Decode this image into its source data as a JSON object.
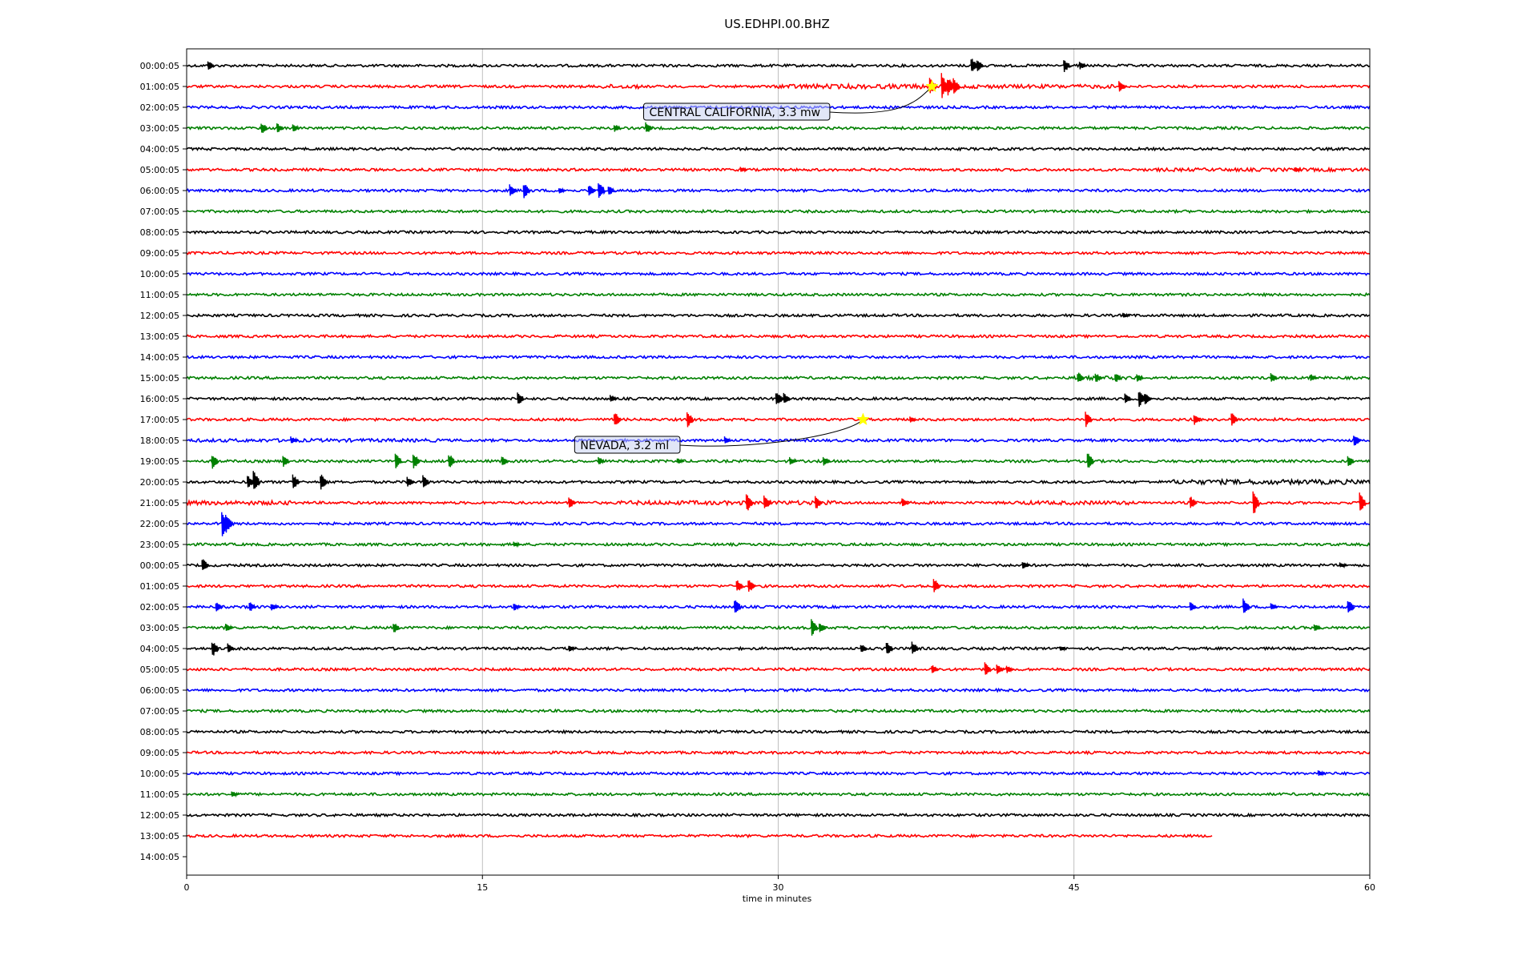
{
  "chart_data": {
    "type": "line",
    "title": "US.EDHPI.00.BHZ",
    "xlabel": "time in minutes",
    "ylabel": "",
    "xlim": [
      0,
      60
    ],
    "xticks": [
      0,
      15,
      30,
      45,
      60
    ],
    "grid": "vertical",
    "trace_colors": [
      "#000000",
      "#ff0000",
      "#0000ff",
      "#008000"
    ],
    "rows": [
      {
        "label": "00:00:05",
        "end_minute": 60,
        "events": [
          [
            1.2,
            0.5
          ],
          [
            39.9,
            0.8
          ],
          [
            40.2,
            0.6
          ],
          [
            44.6,
            0.7
          ],
          [
            45.4,
            0.4
          ]
        ],
        "noisy": []
      },
      {
        "label": "01:00:05",
        "end_minute": 60,
        "events": [
          [
            37.8,
            0.9
          ],
          [
            38.4,
            1.3
          ],
          [
            38.7,
            1.0
          ],
          [
            39.0,
            0.8
          ],
          [
            47.4,
            0.6
          ]
        ],
        "noisy": [
          [
            21,
            23,
            1.6
          ],
          [
            30,
            39,
            1.8
          ],
          [
            39,
            47,
            1.5
          ]
        ]
      },
      {
        "label": "02:00:05",
        "end_minute": 60,
        "events": [],
        "noisy": []
      },
      {
        "label": "03:00:05",
        "end_minute": 60,
        "events": [
          [
            3.9,
            0.6
          ],
          [
            4.7,
            0.5
          ],
          [
            5.5,
            0.4
          ],
          [
            21.8,
            0.4
          ],
          [
            23.4,
            0.6
          ]
        ],
        "noisy": []
      },
      {
        "label": "04:00:05",
        "end_minute": 60,
        "events": [],
        "noisy": []
      },
      {
        "label": "05:00:05",
        "end_minute": 60,
        "events": [
          [
            28.2,
            0.3
          ],
          [
            56.3,
            0.3
          ]
        ],
        "noisy": [
          [
            49,
            60,
            1.3
          ]
        ]
      },
      {
        "label": "06:00:05",
        "end_minute": 60,
        "events": [
          [
            16.5,
            0.6
          ],
          [
            17.2,
            0.8
          ],
          [
            19.0,
            0.3
          ],
          [
            20.5,
            0.6
          ],
          [
            21.0,
            1.0
          ],
          [
            21.5,
            0.5
          ]
        ],
        "noisy": []
      },
      {
        "label": "07:00:05",
        "end_minute": 60,
        "events": [],
        "noisy": []
      },
      {
        "label": "08:00:05",
        "end_minute": 60,
        "events": [],
        "noisy": []
      },
      {
        "label": "09:00:05",
        "end_minute": 60,
        "events": [],
        "noisy": []
      },
      {
        "label": "10:00:05",
        "end_minute": 60,
        "events": [],
        "noisy": []
      },
      {
        "label": "11:00:05",
        "end_minute": 60,
        "events": [],
        "noisy": []
      },
      {
        "label": "12:00:05",
        "end_minute": 60,
        "events": [
          [
            47.6,
            0.3
          ]
        ],
        "noisy": []
      },
      {
        "label": "13:00:05",
        "end_minute": 60,
        "events": [],
        "noisy": []
      },
      {
        "label": "14:00:05",
        "end_minute": 60,
        "events": [],
        "noisy": []
      },
      {
        "label": "15:00:05",
        "end_minute": 60,
        "events": [
          [
            45.3,
            0.6
          ],
          [
            46.2,
            0.5
          ],
          [
            47.2,
            0.5
          ],
          [
            48.3,
            0.4
          ],
          [
            55.1,
            0.5
          ],
          [
            57.1,
            0.4
          ]
        ],
        "noisy": [
          [
            45,
            48.5,
            1.4
          ]
        ]
      },
      {
        "label": "16:00:05",
        "end_minute": 60,
        "events": [
          [
            16.9,
            0.7
          ],
          [
            21.6,
            0.4
          ],
          [
            30.0,
            0.8
          ],
          [
            30.4,
            0.6
          ],
          [
            47.7,
            0.6
          ],
          [
            48.4,
            0.9
          ],
          [
            48.7,
            0.6
          ]
        ],
        "noisy": []
      },
      {
        "label": "17:00:05",
        "end_minute": 60,
        "events": [
          [
            21.8,
            0.8
          ],
          [
            25.5,
            0.8
          ],
          [
            36.8,
            0.3
          ],
          [
            45.7,
            0.8
          ],
          [
            51.2,
            0.6
          ],
          [
            53.1,
            0.7
          ]
        ],
        "noisy": []
      },
      {
        "label": "18:00:05",
        "end_minute": 60,
        "events": [
          [
            5.4,
            0.4
          ],
          [
            27.4,
            0.4
          ],
          [
            59.3,
            0.7
          ]
        ],
        "noisy": [
          [
            0,
            13,
            1.3
          ]
        ]
      },
      {
        "label": "19:00:05",
        "end_minute": 60,
        "events": [
          [
            1.4,
            0.8
          ],
          [
            5.0,
            0.6
          ],
          [
            10.7,
            0.8
          ],
          [
            11.6,
            0.9
          ],
          [
            13.4,
            0.8
          ],
          [
            16.1,
            0.5
          ],
          [
            21.0,
            0.4
          ],
          [
            25.0,
            0.3
          ],
          [
            30.7,
            0.4
          ],
          [
            32.4,
            0.5
          ],
          [
            45.8,
            0.9
          ],
          [
            59.0,
            0.6
          ]
        ],
        "noisy": []
      },
      {
        "label": "20:00:05",
        "end_minute": 60,
        "events": [
          [
            3.2,
            0.7
          ],
          [
            3.5,
            1.1
          ],
          [
            5.5,
            0.8
          ],
          [
            6.9,
            0.9
          ],
          [
            11.3,
            0.5
          ],
          [
            12.1,
            0.8
          ]
        ],
        "noisy": [
          [
            50,
            60,
            1.8
          ]
        ]
      },
      {
        "label": "21:00:05",
        "end_minute": 60,
        "events": [
          [
            19.5,
            0.6
          ],
          [
            28.5,
            1.0
          ],
          [
            29.4,
            0.8
          ],
          [
            32.0,
            0.7
          ],
          [
            36.4,
            0.5
          ],
          [
            51.0,
            0.7
          ],
          [
            54.2,
            1.3
          ],
          [
            59.6,
            1.0
          ]
        ],
        "noisy": [
          [
            0,
            5.5,
            1.6
          ],
          [
            22,
            33,
            1.6
          ],
          [
            42,
            48,
            1.5
          ]
        ]
      },
      {
        "label": "22:00:05",
        "end_minute": 60,
        "events": [
          [
            1.9,
            1.4
          ],
          [
            2.1,
            1.0
          ]
        ],
        "noisy": []
      },
      {
        "label": "23:00:05",
        "end_minute": 60,
        "events": [
          [
            16.7,
            0.3
          ]
        ],
        "noisy": []
      },
      {
        "label": "00:00:05",
        "end_minute": 60,
        "events": [
          [
            0.9,
            0.7
          ],
          [
            42.5,
            0.4
          ],
          [
            58.6,
            0.3
          ]
        ],
        "noisy": []
      },
      {
        "label": "01:00:05",
        "end_minute": 60,
        "events": [
          [
            28.0,
            0.7
          ],
          [
            28.6,
            0.7
          ],
          [
            38.0,
            0.8
          ]
        ],
        "noisy": []
      },
      {
        "label": "02:00:05",
        "end_minute": 60,
        "events": [
          [
            1.6,
            0.5
          ],
          [
            3.3,
            0.5
          ],
          [
            4.4,
            0.4
          ],
          [
            16.7,
            0.4
          ],
          [
            27.9,
            0.9
          ],
          [
            51.0,
            0.5
          ],
          [
            53.7,
            0.9
          ],
          [
            55.1,
            0.4
          ],
          [
            59.0,
            0.9
          ]
        ],
        "noisy": []
      },
      {
        "label": "03:00:05",
        "end_minute": 60,
        "events": [
          [
            2.1,
            0.4
          ],
          [
            10.6,
            0.6
          ],
          [
            31.8,
            0.9
          ],
          [
            32.2,
            0.5
          ],
          [
            57.3,
            0.4
          ]
        ],
        "noisy": []
      },
      {
        "label": "04:00:05",
        "end_minute": 60,
        "events": [
          [
            1.4,
            0.9
          ],
          [
            2.2,
            0.5
          ],
          [
            19.5,
            0.3
          ],
          [
            34.3,
            0.5
          ],
          [
            35.6,
            0.7
          ],
          [
            36.9,
            0.7
          ],
          [
            44.4,
            0.3
          ]
        ],
        "noisy": []
      },
      {
        "label": "05:00:05",
        "end_minute": 60,
        "events": [
          [
            37.9,
            0.5
          ],
          [
            40.6,
            0.7
          ],
          [
            41.2,
            0.5
          ],
          [
            41.7,
            0.4
          ]
        ],
        "noisy": []
      },
      {
        "label": "06:00:05",
        "end_minute": 60,
        "events": [],
        "noisy": []
      },
      {
        "label": "07:00:05",
        "end_minute": 60,
        "events": [],
        "noisy": []
      },
      {
        "label": "08:00:05",
        "end_minute": 60,
        "events": [],
        "noisy": []
      },
      {
        "label": "09:00:05",
        "end_minute": 60,
        "events": [],
        "noisy": []
      },
      {
        "label": "10:00:05",
        "end_minute": 60,
        "events": [
          [
            57.5,
            0.3
          ]
        ],
        "noisy": []
      },
      {
        "label": "11:00:05",
        "end_minute": 60,
        "events": [
          [
            2.4,
            0.3
          ]
        ],
        "noisy": []
      },
      {
        "label": "12:00:05",
        "end_minute": 60,
        "events": [],
        "noisy": []
      },
      {
        "label": "13:00:05",
        "end_minute": 52,
        "events": [],
        "noisy": []
      },
      {
        "label": "14:00:05",
        "end_minute": 0,
        "events": [],
        "noisy": []
      }
    ],
    "annotations": [
      {
        "text": "CENTRAL CALIFORNIA, 3.3 mw",
        "row": 1,
        "minute": 37.8,
        "marker_color": "#ffff00"
      },
      {
        "text": "NEVADA, 3.2 ml",
        "row": 17,
        "minute": 34.3,
        "marker_color": "#ffff00"
      }
    ]
  }
}
